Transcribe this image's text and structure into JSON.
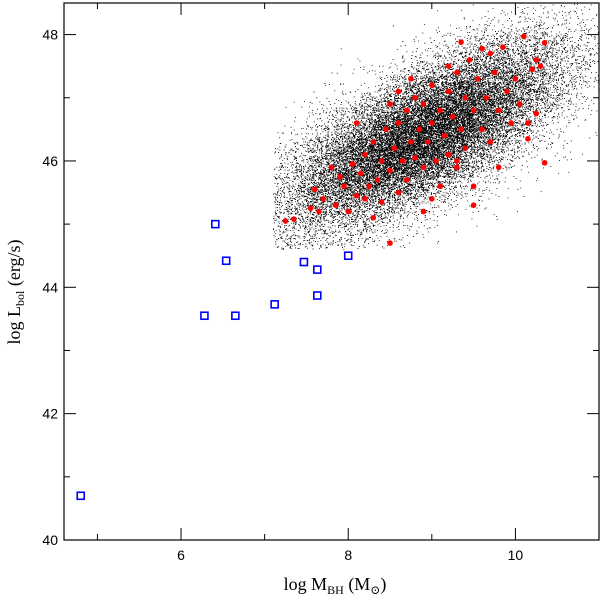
{
  "chart_data": {
    "type": "scatter",
    "xlabel": {
      "prefix": "log M",
      "sub": "BH",
      "suffix": " (M",
      "sub2": "⊙",
      "close": ")"
    },
    "ylabel": {
      "prefix": "log L",
      "sub": "bol",
      "suffix": " (erg/s)"
    },
    "xlim": [
      4.6,
      11.0
    ],
    "ylim": [
      40.0,
      48.5
    ],
    "xticks_major": [
      6,
      8,
      10
    ],
    "xticks_minor": [
      5,
      7,
      9,
      11
    ],
    "yticks_major": [
      40,
      42,
      44,
      46,
      48
    ],
    "yticks_minor": [
      41,
      43,
      45,
      47
    ],
    "grid": false,
    "series": [
      {
        "marker": "dot",
        "color": "#000000",
        "distribution": {
          "kind": "bivariate-normal",
          "center": [
            8.9,
            46.4
          ],
          "sd": [
            0.85,
            0.75
          ],
          "correlation": 0.72,
          "count": 26000
        }
      },
      {
        "marker": "filled-circle",
        "color": "#ff0000",
        "points": [
          [
            7.25,
            45.05
          ],
          [
            7.35,
            45.08
          ],
          [
            7.55,
            45.25
          ],
          [
            7.6,
            45.55
          ],
          [
            7.7,
            45.4
          ],
          [
            7.8,
            45.9
          ],
          [
            7.85,
            45.3
          ],
          [
            7.9,
            45.75
          ],
          [
            7.95,
            45.6
          ],
          [
            8.0,
            45.2
          ],
          [
            8.05,
            45.95
          ],
          [
            8.1,
            45.45
          ],
          [
            8.15,
            45.8
          ],
          [
            8.2,
            46.1
          ],
          [
            8.25,
            45.6
          ],
          [
            8.3,
            46.3
          ],
          [
            8.35,
            45.7
          ],
          [
            8.4,
            46.0
          ],
          [
            8.45,
            46.5
          ],
          [
            8.5,
            45.85
          ],
          [
            8.5,
            44.7
          ],
          [
            8.55,
            46.2
          ],
          [
            8.6,
            46.6
          ],
          [
            8.6,
            45.5
          ],
          [
            8.65,
            46.0
          ],
          [
            8.7,
            46.8
          ],
          [
            8.7,
            45.7
          ],
          [
            8.75,
            46.3
          ],
          [
            8.8,
            47.0
          ],
          [
            8.8,
            46.05
          ],
          [
            8.85,
            46.5
          ],
          [
            8.9,
            45.9
          ],
          [
            8.9,
            46.9
          ],
          [
            8.95,
            46.3
          ],
          [
            9.0,
            47.2
          ],
          [
            9.0,
            46.6
          ],
          [
            9.05,
            46.0
          ],
          [
            9.1,
            46.8
          ],
          [
            9.1,
            45.6
          ],
          [
            9.15,
            46.4
          ],
          [
            9.2,
            47.1
          ],
          [
            9.2,
            46.1
          ],
          [
            9.25,
            46.7
          ],
          [
            9.3,
            47.4
          ],
          [
            9.3,
            45.9
          ],
          [
            9.35,
            46.5
          ],
          [
            9.35,
            47.88
          ],
          [
            9.4,
            47.0
          ],
          [
            9.4,
            46.2
          ],
          [
            9.45,
            47.6
          ],
          [
            9.5,
            46.8
          ],
          [
            9.5,
            45.6
          ],
          [
            9.55,
            47.3
          ],
          [
            9.6,
            46.5
          ],
          [
            9.6,
            47.78
          ],
          [
            9.65,
            47.0
          ],
          [
            9.7,
            46.3
          ],
          [
            9.75,
            47.4
          ],
          [
            9.8,
            46.8
          ],
          [
            9.85,
            47.8
          ],
          [
            9.9,
            47.1
          ],
          [
            9.95,
            46.6
          ],
          [
            10.0,
            47.3
          ],
          [
            10.05,
            46.9
          ],
          [
            10.1,
            47.97
          ],
          [
            10.15,
            46.6
          ],
          [
            10.2,
            47.45
          ],
          [
            10.25,
            46.75
          ],
          [
            10.3,
            47.5
          ],
          [
            10.35,
            47.87
          ],
          [
            10.35,
            45.97
          ],
          [
            9.5,
            45.3
          ],
          [
            8.3,
            45.1
          ],
          [
            8.9,
            45.2
          ],
          [
            9.8,
            45.9
          ],
          [
            7.65,
            45.2
          ],
          [
            8.1,
            46.6
          ],
          [
            8.6,
            47.1
          ],
          [
            9.2,
            47.5
          ],
          [
            9.0,
            45.4
          ],
          [
            8.4,
            45.35
          ],
          [
            9.7,
            47.7
          ],
          [
            10.25,
            47.6
          ],
          [
            10.15,
            46.35
          ],
          [
            8.75,
            47.3
          ],
          [
            9.3,
            46.0
          ],
          [
            8.2,
            45.4
          ],
          [
            8.5,
            46.9
          ]
        ]
      },
      {
        "marker": "open-square",
        "color": "#0000ff",
        "points": [
          [
            4.8,
            40.7
          ],
          [
            6.28,
            43.55
          ],
          [
            6.41,
            45.0
          ],
          [
            6.54,
            44.42
          ],
          [
            6.65,
            43.55
          ],
          [
            7.12,
            43.73
          ],
          [
            7.47,
            44.4
          ],
          [
            7.63,
            43.87
          ],
          [
            7.63,
            44.28
          ],
          [
            8.0,
            44.5
          ]
        ]
      }
    ]
  }
}
